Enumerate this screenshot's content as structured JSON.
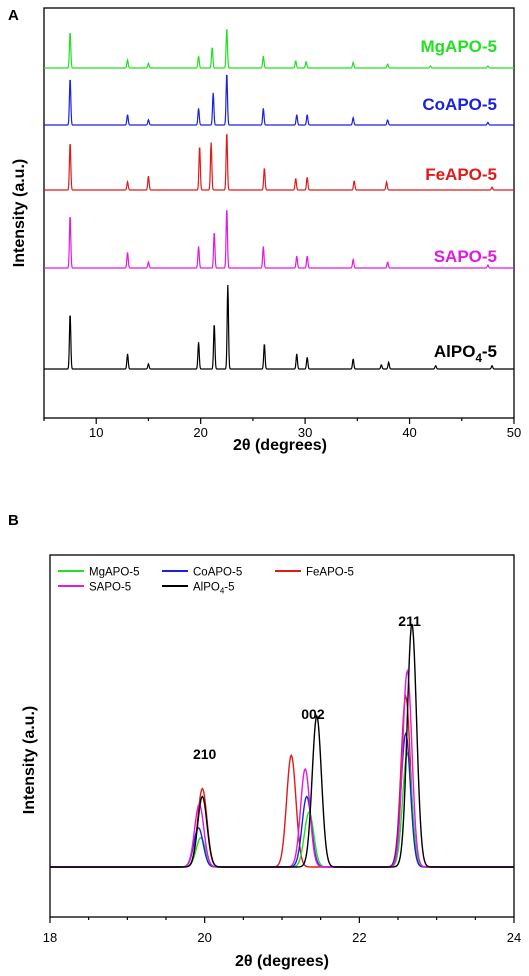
{
  "chart_data": [
    {
      "panel_label": "A",
      "type": "line",
      "xlabel": "2θ (degrees)",
      "ylabel": "Intensity (a.u.)",
      "xlim": [
        5,
        50
      ],
      "x_ticks": [
        10,
        20,
        30,
        40,
        50
      ],
      "y_ticks_shown": false,
      "legend": "inline labels at right of each trace",
      "series": [
        {
          "name": "MgAPO-5",
          "color": "#22e022",
          "peaks": [
            [
              7.5,
              0.9
            ],
            [
              13.0,
              0.2
            ],
            [
              15.0,
              0.12
            ],
            [
              19.8,
              0.3
            ],
            [
              21.1,
              0.52
            ],
            [
              22.5,
              1.0
            ],
            [
              26.0,
              0.3
            ],
            [
              29.1,
              0.18
            ],
            [
              30.1,
              0.16
            ],
            [
              34.6,
              0.14
            ],
            [
              37.9,
              0.1
            ],
            [
              42.0,
              0.05
            ],
            [
              47.5,
              0.05
            ]
          ]
        },
        {
          "name": "CoAPO-5",
          "color": "#1a22e0",
          "peaks": [
            [
              7.5,
              0.9
            ],
            [
              13.0,
              0.2
            ],
            [
              15.0,
              0.1
            ],
            [
              19.8,
              0.32
            ],
            [
              21.2,
              0.62
            ],
            [
              22.5,
              1.0
            ],
            [
              26.0,
              0.32
            ],
            [
              29.2,
              0.2
            ],
            [
              30.2,
              0.2
            ],
            [
              34.6,
              0.14
            ],
            [
              37.9,
              0.1
            ],
            [
              47.5,
              0.05
            ]
          ]
        },
        {
          "name": "FeAPO-5",
          "color": "#e01a1a",
          "peaks": [
            [
              7.5,
              0.82
            ],
            [
              13.0,
              0.14
            ],
            [
              15.0,
              0.24
            ],
            [
              19.9,
              0.76
            ],
            [
              21.0,
              0.82
            ],
            [
              22.5,
              1.0
            ],
            [
              26.1,
              0.38
            ],
            [
              29.1,
              0.2
            ],
            [
              30.2,
              0.22
            ],
            [
              34.7,
              0.16
            ],
            [
              37.8,
              0.14
            ],
            [
              47.9,
              0.05
            ]
          ]
        },
        {
          "name": "SAPO-5",
          "color": "#e01ae0",
          "peaks": [
            [
              7.5,
              0.88
            ],
            [
              13.0,
              0.26
            ],
            [
              15.0,
              0.1
            ],
            [
              19.8,
              0.36
            ],
            [
              21.3,
              0.6
            ],
            [
              22.5,
              1.0
            ],
            [
              26.0,
              0.36
            ],
            [
              29.2,
              0.2
            ],
            [
              30.2,
              0.2
            ],
            [
              34.6,
              0.14
            ],
            [
              37.9,
              0.1
            ],
            [
              47.5,
              0.05
            ]
          ]
        },
        {
          "name": "AlPO4-5",
          "name_main": "AlPO",
          "name_sub": "4",
          "name_tail": "-5",
          "color": "#000000",
          "peaks": [
            [
              7.5,
              0.66
            ],
            [
              13.0,
              0.18
            ],
            [
              15.0,
              0.06
            ],
            [
              19.8,
              0.32
            ],
            [
              21.3,
              0.54
            ],
            [
              22.6,
              1.0
            ],
            [
              26.1,
              0.3
            ],
            [
              29.2,
              0.18
            ],
            [
              30.2,
              0.14
            ],
            [
              34.6,
              0.12
            ],
            [
              37.3,
              0.05
            ],
            [
              38.0,
              0.08
            ],
            [
              42.5,
              0.04
            ],
            [
              47.9,
              0.04
            ]
          ]
        }
      ]
    },
    {
      "panel_label": "B",
      "type": "line",
      "xlabel": "2θ (degrees)",
      "ylabel": "Intensity (a.u.)",
      "xlim": [
        18,
        24
      ],
      "x_ticks": [
        18,
        20,
        22,
        24
      ],
      "y_ticks_shown": false,
      "legend": "top-left",
      "annotations": [
        {
          "text": "210",
          "x": 20.0
        },
        {
          "text": "002",
          "x": 21.4
        },
        {
          "text": "211",
          "x": 22.65
        }
      ],
      "series": [
        {
          "name": "MgAPO-5",
          "color": "#22e022",
          "peaks": [
            [
              19.95,
              0.15
            ],
            [
              21.35,
              0.28
            ],
            [
              22.62,
              0.58
            ]
          ]
        },
        {
          "name": "CoAPO-5",
          "color": "#1a22e0",
          "peaks": [
            [
              19.92,
              0.2
            ],
            [
              21.32,
              0.36
            ],
            [
              22.6,
              0.68
            ]
          ]
        },
        {
          "name": "FeAPO-5",
          "color": "#e01a1a",
          "peaks": [
            [
              19.97,
              0.4
            ],
            [
              21.12,
              0.57
            ],
            [
              22.6,
              0.87
            ]
          ]
        },
        {
          "name": "SAPO-5",
          "color": "#e01ae0",
          "peaks": [
            [
              19.93,
              0.32
            ],
            [
              21.3,
              0.5
            ],
            [
              22.62,
              1.0
            ]
          ]
        },
        {
          "name": "AlPO4-5",
          "name_main": "AlPO",
          "name_sub": "4",
          "name_tail": "-5",
          "color": "#000000",
          "peaks": [
            [
              19.97,
              0.36
            ],
            [
              21.45,
              0.77
            ],
            [
              22.68,
              1.24
            ]
          ]
        }
      ]
    }
  ]
}
